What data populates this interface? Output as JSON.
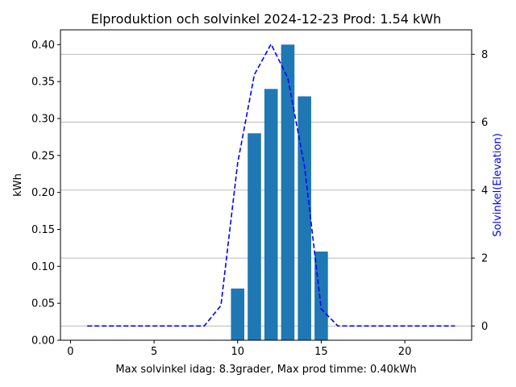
{
  "chart_data": {
    "type": "bar",
    "title": "Elproduktion och solvinkel 2024-12-23 Prod: 1.54 kWh",
    "xlabel": "Max solvinkel idag: 8.3grader, Max prod timme: 0.40kWh",
    "ylabel": "kWh",
    "ylabel_right": "Solvinkel(Elevation)",
    "xlim": [
      -0.6,
      24.0
    ],
    "ylim": [
      0,
      0.42
    ],
    "ylim_right": [
      -0.42,
      8.72
    ],
    "x_ticks": [
      0,
      5,
      10,
      15,
      20
    ],
    "y_ticks": [
      0.0,
      0.05,
      0.1,
      0.15,
      0.2,
      0.25,
      0.3,
      0.35,
      0.4
    ],
    "y_tick_labels": [
      "0.00",
      "0.05",
      "0.10",
      "0.15",
      "0.20",
      "0.25",
      "0.30",
      "0.35",
      "0.40"
    ],
    "y_right_ticks": [
      0,
      2,
      4,
      6,
      8
    ],
    "grid": "horizontal lines at right-axis ticks",
    "bars": {
      "x": [
        10,
        11,
        12,
        13,
        14,
        15
      ],
      "values": [
        0.07,
        0.28,
        0.34,
        0.4,
        0.33,
        0.12
      ],
      "color": "#1f77b4"
    },
    "line": {
      "axis": "right",
      "style": "dashed",
      "color": "#0000ff",
      "x": [
        1,
        2,
        3,
        4,
        5,
        6,
        7,
        8,
        9,
        10,
        11,
        12,
        13,
        14,
        15,
        16,
        17,
        18,
        19,
        20,
        21,
        22,
        23
      ],
      "values": [
        0,
        0,
        0,
        0,
        0,
        0,
        0,
        0,
        0.6,
        4.8,
        7.4,
        8.3,
        7.3,
        4.7,
        0.5,
        0,
        0,
        0,
        0,
        0,
        0,
        0,
        0
      ]
    }
  }
}
